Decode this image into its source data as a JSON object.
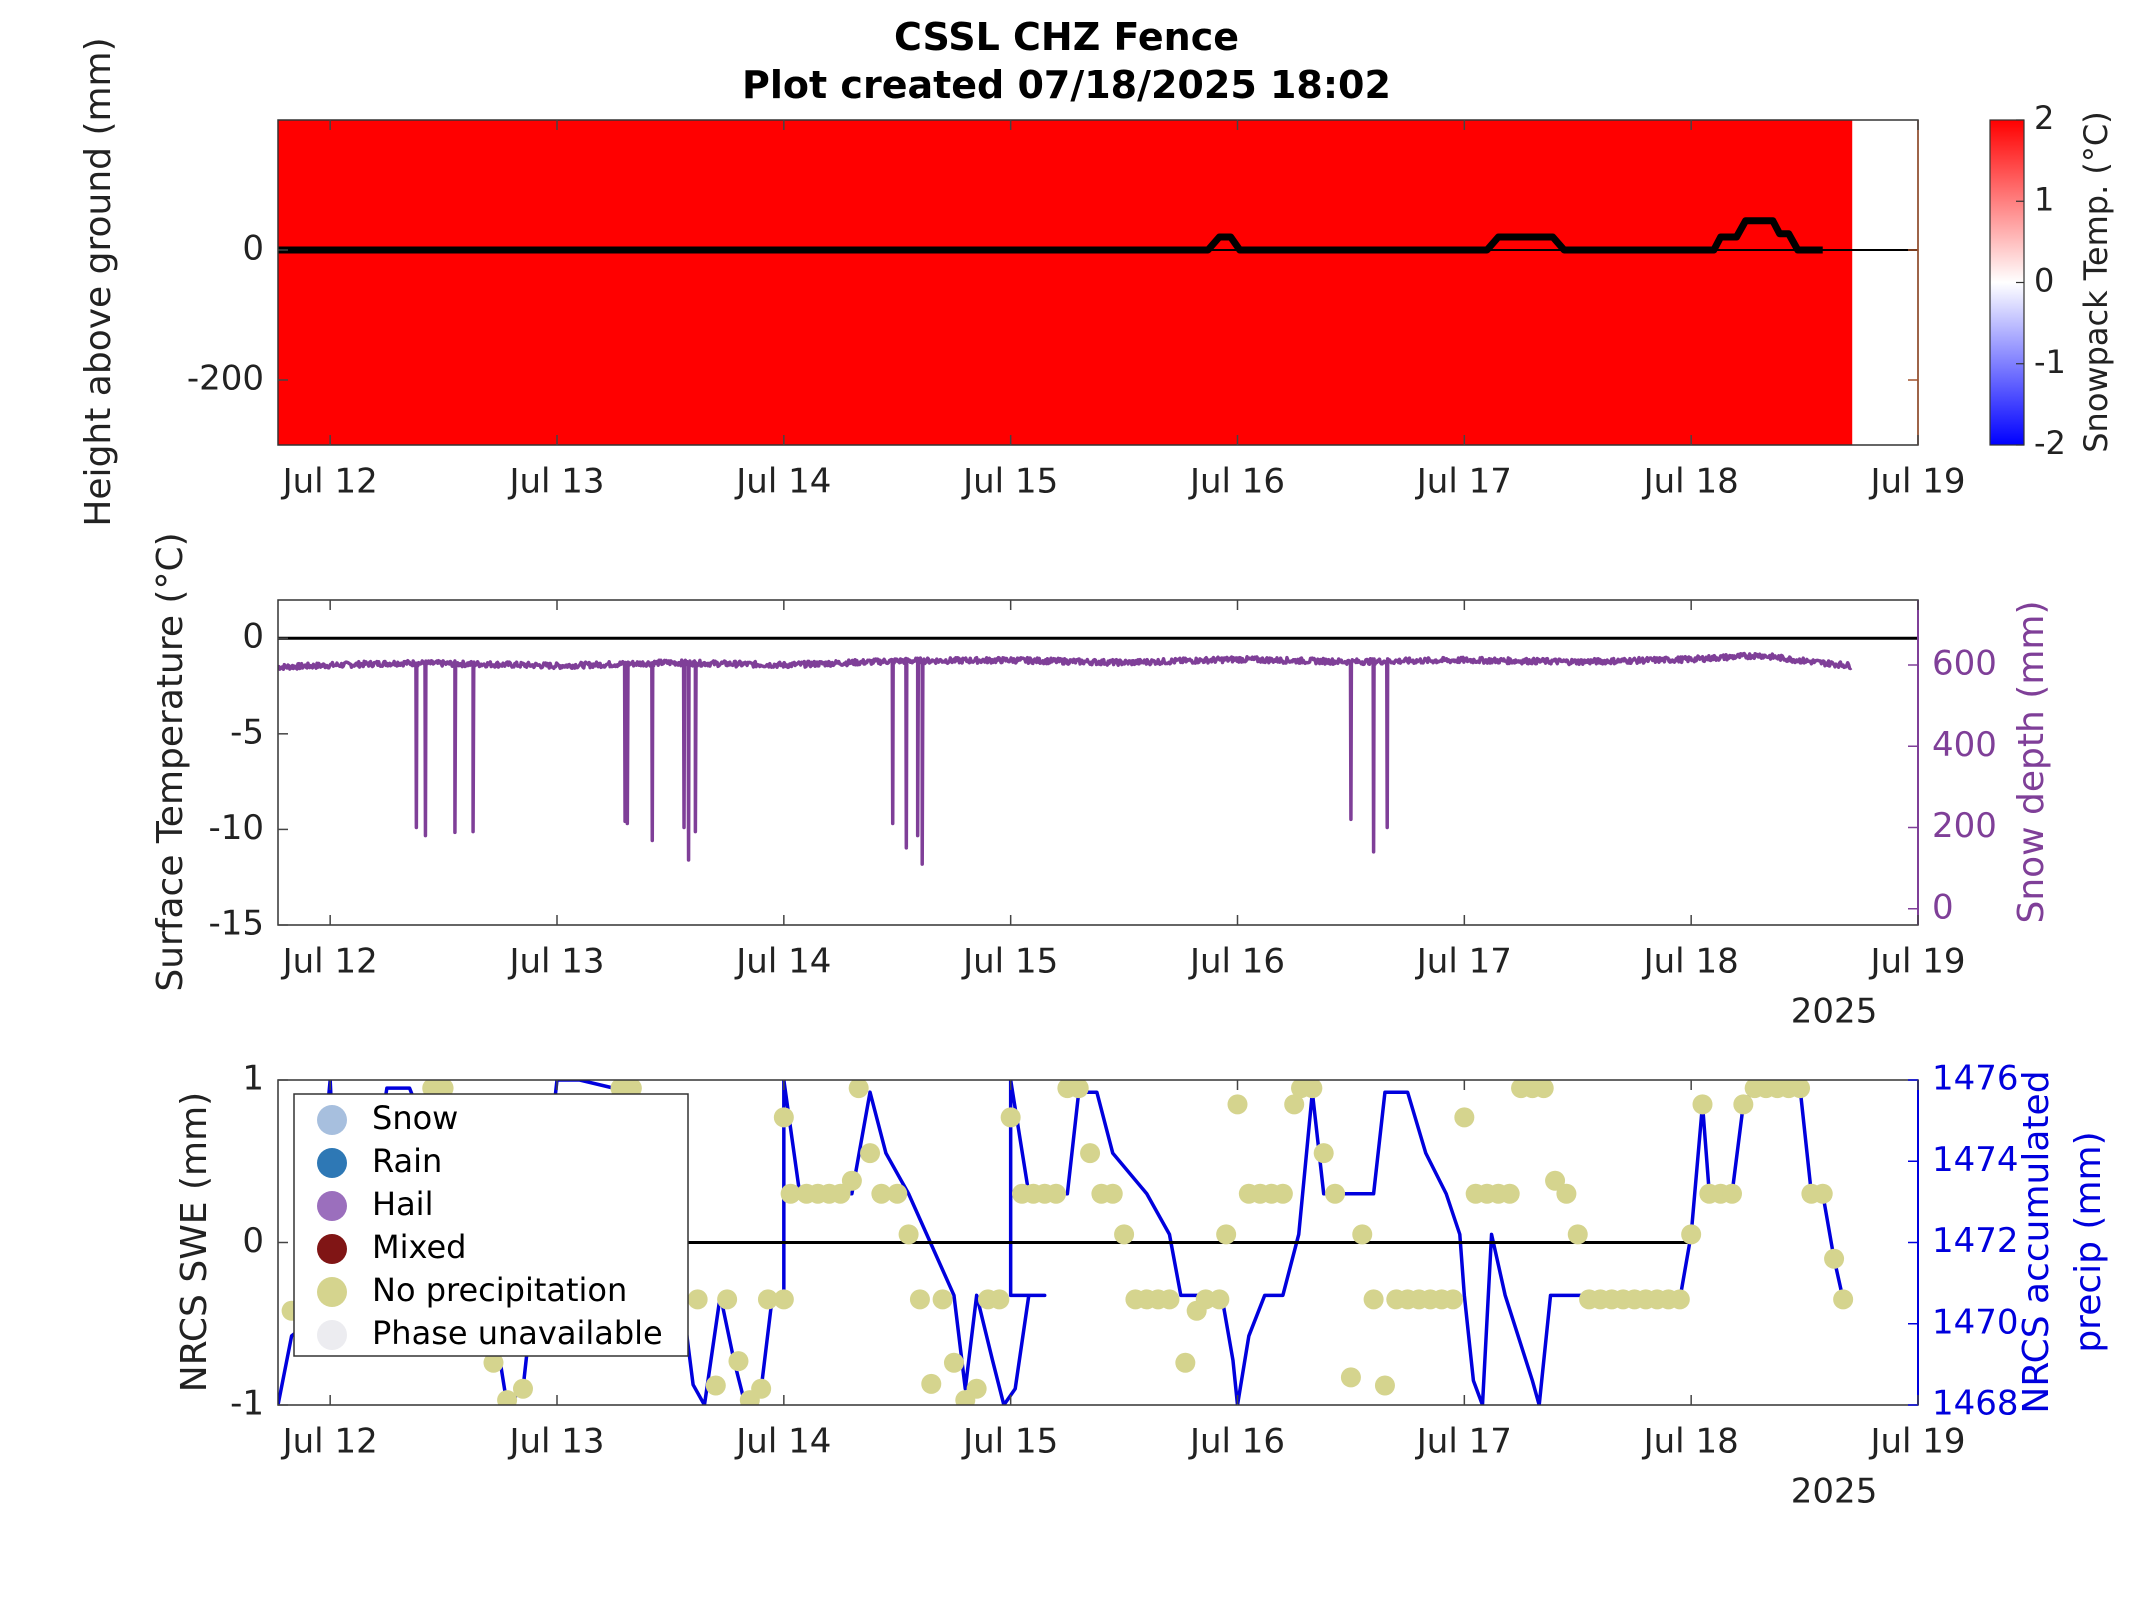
{
  "title": [
    "CSSL CHZ Fence",
    "Plot created 07/18/2025 18:02"
  ],
  "colors": {
    "snowpack_hot": "#ff0000",
    "black": "#000000",
    "snow_depth": "#7f3f98",
    "nrcs_accum": "#0000dd",
    "no_precip": "#d5d48e",
    "axis_right": "#000000"
  },
  "x_axis": {
    "ticks": [
      "Jul 12",
      "Jul 13",
      "Jul 14",
      "Jul 15",
      "Jul 16",
      "Jul 17",
      "Jul 18",
      "Jul 19"
    ],
    "tick_days": [
      12,
      13,
      14,
      15,
      16,
      17,
      18,
      19
    ],
    "range_days": [
      11.77,
      19.0
    ],
    "year_label": "2025"
  },
  "chart_data": [
    {
      "type": "heatmap",
      "name": "snowpack",
      "ylabel": "Height above ground (mm)",
      "ylim": [
        -300,
        200
      ],
      "yticks": [
        -200,
        0
      ],
      "colorbar": {
        "label": "Snowpack Temp. (°C)",
        "range": [
          -2,
          2
        ],
        "ticks": [
          -2,
          -1,
          0,
          1,
          2
        ]
      },
      "heat_fill_end_day": 18.71,
      "snow_height_line": [
        [
          11.77,
          0
        ],
        [
          15.87,
          0
        ],
        [
          15.92,
          20
        ],
        [
          15.97,
          20
        ],
        [
          16.01,
          0
        ],
        [
          17.1,
          0
        ],
        [
          17.15,
          20
        ],
        [
          17.39,
          20
        ],
        [
          17.44,
          0
        ],
        [
          18.1,
          0
        ],
        [
          18.13,
          20
        ],
        [
          18.2,
          20
        ],
        [
          18.24,
          45
        ],
        [
          18.36,
          45
        ],
        [
          18.39,
          25
        ],
        [
          18.43,
          25
        ],
        [
          18.47,
          0
        ],
        [
          18.58,
          0
        ]
      ],
      "zero_line_extends_to_day": 19.0
    },
    {
      "type": "line",
      "name": "surface",
      "ylabel": "Surface Temperature (°C)",
      "ylim": [
        -15,
        2
      ],
      "yticks": [
        -15,
        -10,
        -5,
        0
      ],
      "y2label": "Snow depth (mm)",
      "y2lim": [
        -40,
        760
      ],
      "y2ticks": [
        0,
        200,
        400,
        600
      ],
      "zero_line": true,
      "series": [
        {
          "name": "Snow depth",
          "axis": "right",
          "baseline_points": [
            [
              11.77,
              595
            ],
            [
              12.3,
              605
            ],
            [
              12.7,
              602
            ],
            [
              13.0,
              598
            ],
            [
              13.5,
              606
            ],
            [
              14.0,
              600
            ],
            [
              14.5,
              610
            ],
            [
              15.0,
              612
            ],
            [
              15.5,
              606
            ],
            [
              16.0,
              614
            ],
            [
              16.5,
              608
            ],
            [
              17.0,
              612
            ],
            [
              17.5,
              608
            ],
            [
              18.0,
              614
            ],
            [
              18.3,
              624
            ],
            [
              18.5,
              610
            ],
            [
              18.71,
              598
            ]
          ],
          "dips": [
            [
              12.38,
              200
            ],
            [
              12.42,
              180
            ],
            [
              12.55,
              188
            ],
            [
              12.63,
              190
            ],
            [
              13.3,
              215
            ],
            [
              13.31,
              210
            ],
            [
              13.42,
              168
            ],
            [
              13.56,
              200
            ],
            [
              13.58,
              120
            ],
            [
              13.61,
              190
            ],
            [
              14.48,
              210
            ],
            [
              14.54,
              150
            ],
            [
              14.59,
              180
            ],
            [
              14.61,
              110
            ],
            [
              16.5,
              220
            ],
            [
              16.6,
              140
            ],
            [
              16.66,
              200
            ]
          ]
        }
      ]
    },
    {
      "type": "line",
      "name": "nrcs",
      "ylabel": "NRCS SWE (mm)",
      "ylim": [
        -1,
        1
      ],
      "yticks": [
        -1,
        0,
        1
      ],
      "y2label": [
        "NRCS accumulated",
        "precip (mm)"
      ],
      "y2lim": [
        1468,
        1476
      ],
      "y2ticks": [
        1468,
        1470,
        1472,
        1474,
        1476
      ],
      "swe_zero_line_days": [
        12.8,
        18.0
      ],
      "legend": {
        "placement": "top-left",
        "entries": [
          {
            "label": "Snow",
            "color": "#a7bfde"
          },
          {
            "label": "Rain",
            "color": "#2e78b5"
          },
          {
            "label": "Hail",
            "color": "#9b6fbd"
          },
          {
            "label": "Mixed",
            "color": "#801515"
          },
          {
            "label": "No precipitation",
            "color": "#d5d48e"
          },
          {
            "label": "Phase unavailable",
            "color": "#ececf0"
          }
        ]
      },
      "accumulated_precip": [
        [
          11.77,
          1468
        ],
        [
          11.83,
          1469.7
        ],
        [
          11.9,
          1470
        ],
        [
          12.0,
          1476
        ],
        [
          12.05,
          1470
        ],
        [
          12.08,
          1469.7
        ],
        [
          12.25,
          1475.8
        ],
        [
          12.35,
          1475.8
        ],
        [
          12.7,
          1470.8
        ],
        [
          12.78,
          1468
        ],
        [
          12.85,
          1468.4
        ],
        [
          13.0,
          1476
        ],
        [
          13.1,
          1476
        ],
        [
          13.25,
          1475.8
        ],
        [
          13.35,
          1475.8
        ],
        [
          13.55,
          1470.7
        ],
        [
          13.6,
          1468.5
        ],
        [
          13.65,
          1468
        ],
        [
          13.72,
          1470.7
        ],
        [
          13.78,
          1469.1
        ],
        [
          13.83,
          1468
        ],
        [
          13.9,
          1468.4
        ],
        [
          13.95,
          1470.7
        ],
        [
          14.0,
          1470.7
        ],
        [
          14.0,
          1476
        ],
        [
          14.07,
          1473.2
        ],
        [
          14.3,
          1473.2
        ],
        [
          14.38,
          1475.7
        ],
        [
          14.45,
          1474.2
        ],
        [
          14.55,
          1473.2
        ],
        [
          14.63,
          1472.2
        ],
        [
          14.75,
          1470.7
        ],
        [
          14.8,
          1468.4
        ],
        [
          14.85,
          1470.7
        ],
        [
          14.92,
          1469.1
        ],
        [
          14.97,
          1468
        ],
        [
          15.02,
          1468.4
        ],
        [
          15.08,
          1470.7
        ],
        [
          15.15,
          1470.7
        ],
        [
          15.0,
          1470.7
        ],
        [
          15.0,
          1476
        ],
        [
          15.08,
          1473.2
        ],
        [
          15.25,
          1473.2
        ],
        [
          15.3,
          1475.7
        ],
        [
          15.38,
          1475.7
        ],
        [
          15.45,
          1474.2
        ],
        [
          15.6,
          1473.2
        ],
        [
          15.7,
          1472.2
        ],
        [
          15.75,
          1470.7
        ],
        [
          15.93,
          1470.7
        ],
        [
          15.98,
          1469.1
        ],
        [
          16.0,
          1468
        ],
        [
          16.05,
          1469.7
        ],
        [
          16.12,
          1470.7
        ],
        [
          16.2,
          1470.7
        ],
        [
          16.27,
          1472.2
        ],
        [
          16.33,
          1475.7
        ],
        [
          16.38,
          1473.2
        ],
        [
          16.6,
          1473.2
        ],
        [
          16.65,
          1475.7
        ],
        [
          16.75,
          1475.7
        ],
        [
          16.83,
          1474.2
        ],
        [
          16.92,
          1473.2
        ],
        [
          16.98,
          1472.2
        ],
        [
          17.0,
          1470.7
        ],
        [
          17.04,
          1468.6
        ],
        [
          17.08,
          1468
        ],
        [
          17.12,
          1472.2
        ],
        [
          17.18,
          1470.7
        ],
        [
          17.3,
          1468.6
        ],
        [
          17.33,
          1468
        ],
        [
          17.38,
          1470.7
        ],
        [
          17.58,
          1470.7
        ]
      ],
      "no_precip_swe_points": [
        [
          11.83,
          -0.42
        ],
        [
          12.45,
          0.95
        ],
        [
          12.5,
          0.95
        ],
        [
          12.72,
          -0.74
        ],
        [
          12.78,
          -0.97
        ],
        [
          12.85,
          -0.9
        ],
        [
          13.28,
          0.95
        ],
        [
          13.33,
          0.95
        ],
        [
          13.62,
          -0.35
        ],
        [
          13.7,
          -0.88
        ],
        [
          13.75,
          -0.35
        ],
        [
          13.8,
          -0.73
        ],
        [
          13.85,
          -0.97
        ],
        [
          13.9,
          -0.9
        ],
        [
          13.93,
          -0.35
        ],
        [
          14.0,
          -0.35
        ],
        [
          14.0,
          0.77
        ],
        [
          14.03,
          0.3
        ],
        [
          14.1,
          0.3
        ],
        [
          14.15,
          0.3
        ],
        [
          14.2,
          0.3
        ],
        [
          14.25,
          0.3
        ],
        [
          14.3,
          0.38
        ],
        [
          14.33,
          0.95
        ],
        [
          14.38,
          0.55
        ],
        [
          14.43,
          0.3
        ],
        [
          14.5,
          0.3
        ],
        [
          14.55,
          0.05
        ],
        [
          14.6,
          -0.35
        ],
        [
          14.65,
          -0.87
        ],
        [
          14.7,
          -0.35
        ],
        [
          14.75,
          -0.74
        ],
        [
          14.8,
          -0.97
        ],
        [
          14.85,
          -0.9
        ],
        [
          14.9,
          -0.35
        ],
        [
          14.95,
          -0.35
        ],
        [
          15.0,
          0.77
        ],
        [
          15.05,
          0.3
        ],
        [
          15.1,
          0.3
        ],
        [
          15.15,
          0.3
        ],
        [
          15.2,
          0.3
        ],
        [
          15.25,
          0.95
        ],
        [
          15.3,
          0.95
        ],
        [
          15.35,
          0.55
        ],
        [
          15.4,
          0.3
        ],
        [
          15.45,
          0.3
        ],
        [
          15.5,
          0.05
        ],
        [
          15.55,
          -0.35
        ],
        [
          15.6,
          -0.35
        ],
        [
          15.65,
          -0.35
        ],
        [
          15.7,
          -0.35
        ],
        [
          15.77,
          -0.74
        ],
        [
          15.82,
          -0.42
        ],
        [
          15.86,
          -0.35
        ],
        [
          15.92,
          -0.35
        ],
        [
          15.95,
          0.05
        ],
        [
          16.0,
          0.85
        ],
        [
          16.05,
          0.3
        ],
        [
          16.1,
          0.3
        ],
        [
          16.15,
          0.3
        ],
        [
          16.2,
          0.3
        ],
        [
          16.25,
          0.85
        ],
        [
          16.28,
          0.95
        ],
        [
          16.33,
          0.95
        ],
        [
          16.38,
          0.55
        ],
        [
          16.43,
          0.3
        ],
        [
          16.5,
          -0.83
        ],
        [
          16.55,
          0.05
        ],
        [
          16.6,
          -0.35
        ],
        [
          16.65,
          -0.88
        ],
        [
          16.7,
          -0.35
        ],
        [
          16.75,
          -0.35
        ],
        [
          16.8,
          -0.35
        ],
        [
          16.85,
          -0.35
        ],
        [
          16.9,
          -0.35
        ],
        [
          16.95,
          -0.35
        ],
        [
          17.0,
          0.77
        ],
        [
          17.05,
          0.3
        ],
        [
          17.1,
          0.3
        ],
        [
          17.15,
          0.3
        ],
        [
          17.2,
          0.3
        ],
        [
          17.25,
          0.95
        ],
        [
          17.3,
          0.95
        ],
        [
          17.35,
          0.95
        ],
        [
          17.4,
          0.38
        ],
        [
          17.45,
          0.3
        ],
        [
          17.5,
          0.05
        ],
        [
          17.55,
          -0.35
        ],
        [
          17.6,
          -0.35
        ],
        [
          17.65,
          -0.35
        ],
        [
          17.7,
          -0.35
        ],
        [
          17.75,
          -0.35
        ],
        [
          17.8,
          -0.35
        ],
        [
          17.85,
          -0.35
        ],
        [
          17.9,
          -0.35
        ],
        [
          17.95,
          -0.35
        ],
        [
          18.0,
          0.05
        ],
        [
          18.05,
          0.85
        ],
        [
          18.08,
          0.3
        ],
        [
          18.13,
          0.3
        ],
        [
          18.18,
          0.3
        ],
        [
          18.23,
          0.85
        ],
        [
          18.28,
          0.95
        ],
        [
          18.33,
          0.95
        ],
        [
          18.38,
          0.95
        ],
        [
          18.43,
          0.95
        ],
        [
          18.48,
          0.95
        ],
        [
          18.53,
          0.3
        ],
        [
          18.58,
          0.3
        ],
        [
          18.63,
          -0.1
        ],
        [
          18.67,
          -0.35
        ]
      ]
    }
  ]
}
